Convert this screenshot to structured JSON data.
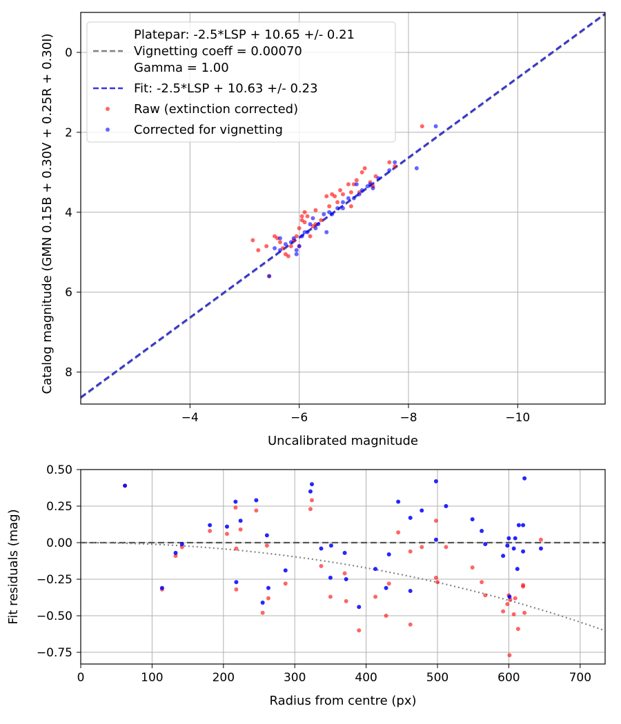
{
  "chart_data": [
    {
      "type": "scatter",
      "xlabel": "Uncalibrated magnitude",
      "ylabel": "Catalog magnitude (GMN 0.15B + 0.30V + 0.25R + 0.30I)",
      "xlim": [
        -2.0,
        -11.6
      ],
      "ylim": [
        8.8,
        -1.0
      ],
      "xticks": [
        -4,
        -6,
        -8,
        -10
      ],
      "yticks": [
        0,
        2,
        4,
        6,
        8
      ],
      "grid": true,
      "legend_position": "top-left",
      "legend": {
        "platepar_lines": [
          "Platepar: -2.5*LSP + 10.65 +/- 0.21",
          "Vignetting coeff = 0.00070",
          "Gamma = 1.00"
        ],
        "fit": "Fit: -2.5*LSP + 10.63 +/- 0.23",
        "raw": "Raw (extinction corrected)",
        "corrected": "Corrected for vignetting"
      },
      "colors": {
        "raw": "#ff0000",
        "corrected": "#0000ff",
        "platepar_line": "#808080",
        "fit_line": "#3333dd"
      },
      "lines": {
        "platepar": {
          "slope": 1.0,
          "intercept": 10.65
        },
        "fit": {
          "slope": 1.0,
          "intercept": 10.63
        }
      },
      "series": [
        {
          "name": "Raw (extinction corrected)",
          "x": [
            -5.15,
            -5.25,
            -5.4,
            -5.55,
            -5.6,
            -5.65,
            -5.7,
            -5.75,
            -5.8,
            -5.85,
            -5.9,
            -5.95,
            -6.0,
            -6.05,
            -6.05,
            -6.1,
            -6.1,
            -6.15,
            -6.2,
            -6.25,
            -6.3,
            -6.4,
            -6.5,
            -6.6,
            -6.65,
            -6.7,
            -6.8,
            -6.9,
            -6.95,
            -7.0,
            -7.05,
            -7.1,
            -7.15,
            -7.2,
            -7.3,
            -7.35,
            -7.4,
            -7.65,
            -7.75,
            -8.25,
            -5.45,
            -6.0,
            -6.3,
            -6.55,
            -6.75,
            -6.95
          ],
          "y": [
            4.7,
            4.95,
            4.85,
            4.6,
            4.65,
            4.75,
            4.9,
            5.05,
            5.1,
            4.85,
            4.7,
            4.6,
            4.4,
            4.2,
            4.1,
            4.0,
            4.25,
            4.1,
            4.6,
            4.35,
            3.95,
            4.2,
            3.6,
            3.55,
            3.6,
            3.75,
            3.55,
            3.3,
            3.5,
            3.3,
            3.2,
            3.5,
            3.0,
            2.9,
            3.25,
            3.35,
            3.1,
            2.75,
            2.85,
            1.85,
            5.6,
            4.85,
            4.3,
            3.85,
            3.45,
            3.85
          ]
        },
        {
          "name": "Corrected for vignetting",
          "x": [
            -5.45,
            -5.55,
            -5.65,
            -5.75,
            -5.85,
            -5.9,
            -5.95,
            -6.0,
            -6.05,
            -6.1,
            -6.15,
            -6.2,
            -6.3,
            -6.35,
            -6.45,
            -6.55,
            -6.6,
            -6.7,
            -6.8,
            -6.9,
            -7.0,
            -7.1,
            -7.15,
            -7.25,
            -7.3,
            -7.35,
            -7.45,
            -7.65,
            -7.75,
            -8.15,
            -8.5,
            -5.65,
            -5.95,
            -6.25,
            -6.5,
            -6.8,
            -7.05
          ],
          "y": [
            5.6,
            4.9,
            4.95,
            4.8,
            4.75,
            4.65,
            5.05,
            4.85,
            4.6,
            4.5,
            4.5,
            4.3,
            4.4,
            4.3,
            4.05,
            4.0,
            4.05,
            3.9,
            3.75,
            3.65,
            3.65,
            3.55,
            3.45,
            3.35,
            3.3,
            3.4,
            3.15,
            2.95,
            2.75,
            2.9,
            1.85,
            4.65,
            4.95,
            4.15,
            4.5,
            3.9,
            3.3
          ]
        }
      ]
    },
    {
      "type": "scatter",
      "xlabel": "Radius from centre (px)",
      "ylabel": "Fit residuals (mag)",
      "xlim": [
        0,
        735
      ],
      "ylim": [
        -0.83,
        0.5
      ],
      "xticks": [
        0,
        100,
        200,
        300,
        400,
        500,
        600,
        700
      ],
      "yticks": [
        0.5,
        0.25,
        0.0,
        -0.25,
        -0.5,
        -0.75
      ],
      "ytick_labels": [
        "0.50",
        "0.25",
        "0.00",
        "−0.25",
        "−0.50",
        "−0.75"
      ],
      "xtick_labels": [
        "0",
        "100",
        "200",
        "300",
        "400",
        "500",
        "600",
        "700"
      ],
      "grid": true,
      "reference_line": {
        "y": 0.0,
        "color": "#555555"
      },
      "vignetting_curve": {
        "coeff": 0.0007,
        "gamma": 1.0,
        "color": "#808080"
      },
      "colors": {
        "raw": "#ff0000",
        "corrected": "#0000ff"
      },
      "series": [
        {
          "name": "Raw (extinction corrected)",
          "x": [
            62,
            114,
            133,
            142,
            181,
            205,
            217,
            218,
            218,
            224,
            246,
            255,
            261,
            263,
            287,
            322,
            324,
            337,
            350,
            370,
            372,
            390,
            413,
            428,
            432,
            445,
            462,
            462,
            478,
            498,
            498,
            500,
            512,
            549,
            562,
            567,
            592,
            598,
            600,
            601,
            602,
            607,
            609,
            613,
            620,
            620,
            622,
            645
          ],
          "y": [
            0.39,
            -0.32,
            -0.09,
            -0.03,
            0.08,
            0.06,
            0.24,
            -0.04,
            -0.32,
            0.09,
            0.22,
            -0.48,
            -0.02,
            -0.38,
            -0.28,
            0.23,
            0.29,
            -0.16,
            -0.37,
            -0.21,
            -0.4,
            -0.6,
            -0.37,
            -0.5,
            -0.28,
            0.07,
            -0.06,
            -0.56,
            -0.03,
            0.15,
            -0.24,
            -0.27,
            -0.03,
            -0.17,
            -0.27,
            -0.36,
            -0.47,
            -0.42,
            -0.36,
            -0.77,
            -0.39,
            -0.49,
            -0.38,
            -0.59,
            -0.29,
            -0.3,
            -0.48,
            0.02
          ]
        },
        {
          "name": "Corrected for vignetting",
          "x": [
            62,
            114,
            133,
            142,
            181,
            205,
            217,
            218,
            224,
            246,
            255,
            261,
            263,
            287,
            322,
            324,
            337,
            350,
            351,
            370,
            372,
            390,
            413,
            428,
            432,
            445,
            462,
            462,
            478,
            498,
            498,
            512,
            549,
            562,
            567,
            592,
            598,
            600,
            601,
            607,
            609,
            612,
            614,
            620,
            620,
            622,
            645
          ],
          "y": [
            0.39,
            -0.31,
            -0.07,
            -0.01,
            0.12,
            0.11,
            0.28,
            -0.27,
            0.15,
            0.29,
            -0.41,
            0.05,
            -0.31,
            -0.19,
            0.35,
            0.4,
            -0.04,
            -0.24,
            -0.02,
            -0.07,
            -0.25,
            -0.44,
            -0.18,
            -0.31,
            -0.08,
            0.28,
            0.17,
            -0.33,
            0.22,
            0.42,
            0.02,
            0.25,
            0.16,
            0.08,
            -0.01,
            -0.09,
            -0.02,
            0.03,
            -0.37,
            -0.04,
            0.03,
            -0.18,
            0.12,
            0.12,
            -0.06,
            0.44,
            -0.04
          ]
        }
      ]
    }
  ]
}
